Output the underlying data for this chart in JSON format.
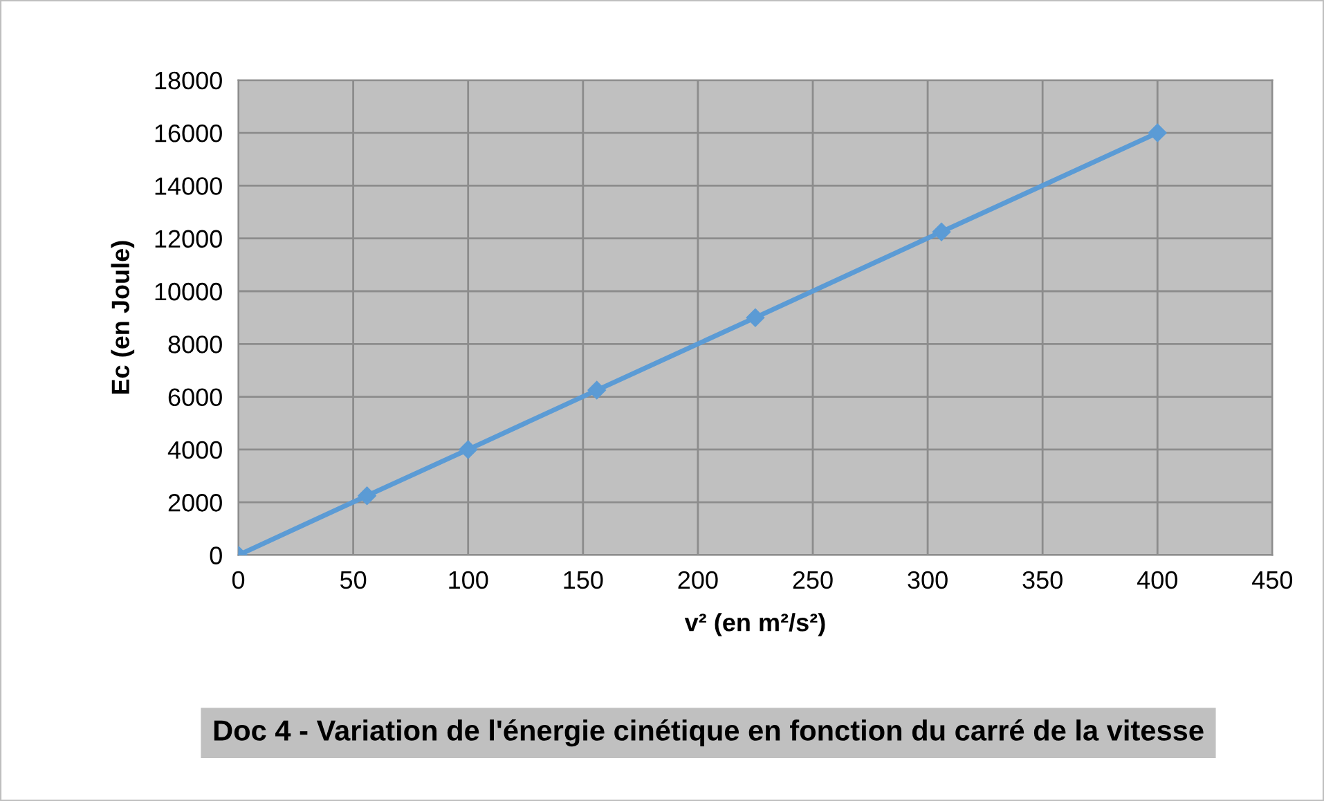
{
  "chart_data": {
    "type": "line",
    "title": "Doc 4 - Variation de l'énergie cinétique en fonction du carré de la vitesse",
    "xlabel": "v² (en m²/s²)",
    "ylabel": "Ec (en Joule)",
    "x": [
      0,
      56,
      100,
      156,
      225,
      306,
      400
    ],
    "series": [
      {
        "color": "#5b9bd5",
        "values": [
          0,
          2250,
          4000,
          6250,
          9000,
          12250,
          16000
        ]
      }
    ],
    "xlim": [
      0,
      450
    ],
    "xticks": [
      0,
      50,
      100,
      150,
      200,
      250,
      300,
      350,
      400,
      450
    ],
    "ylim": [
      0,
      18000
    ],
    "yticks": [
      0,
      2000,
      4000,
      6000,
      8000,
      10000,
      12000,
      14000,
      16000,
      18000
    ],
    "grid": true,
    "marker": "diamond",
    "line_style": "solid",
    "legend": false
  }
}
